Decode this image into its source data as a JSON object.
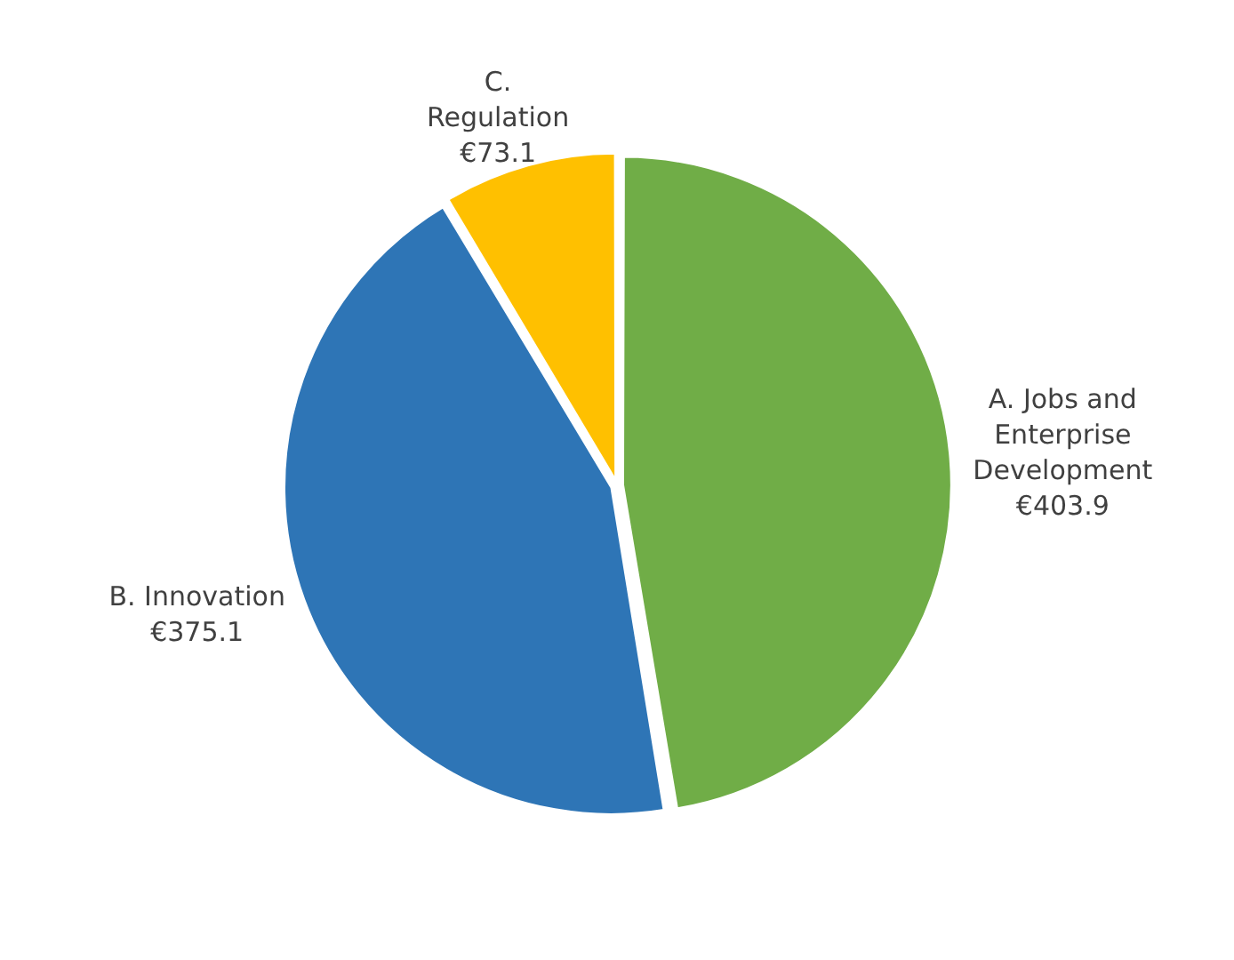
{
  "chart_data": {
    "type": "pie",
    "categories": [
      "A. Jobs and Enterprise Development",
      "B. Innovation",
      "C. Regulation"
    ],
    "values": [
      403.9,
      375.1,
      73.1
    ],
    "value_labels": [
      "€403.9",
      "€375.1",
      "€73.1"
    ],
    "colors": [
      "#70ad47",
      "#2e75b6",
      "#ffc000"
    ],
    "legend": false
  }
}
